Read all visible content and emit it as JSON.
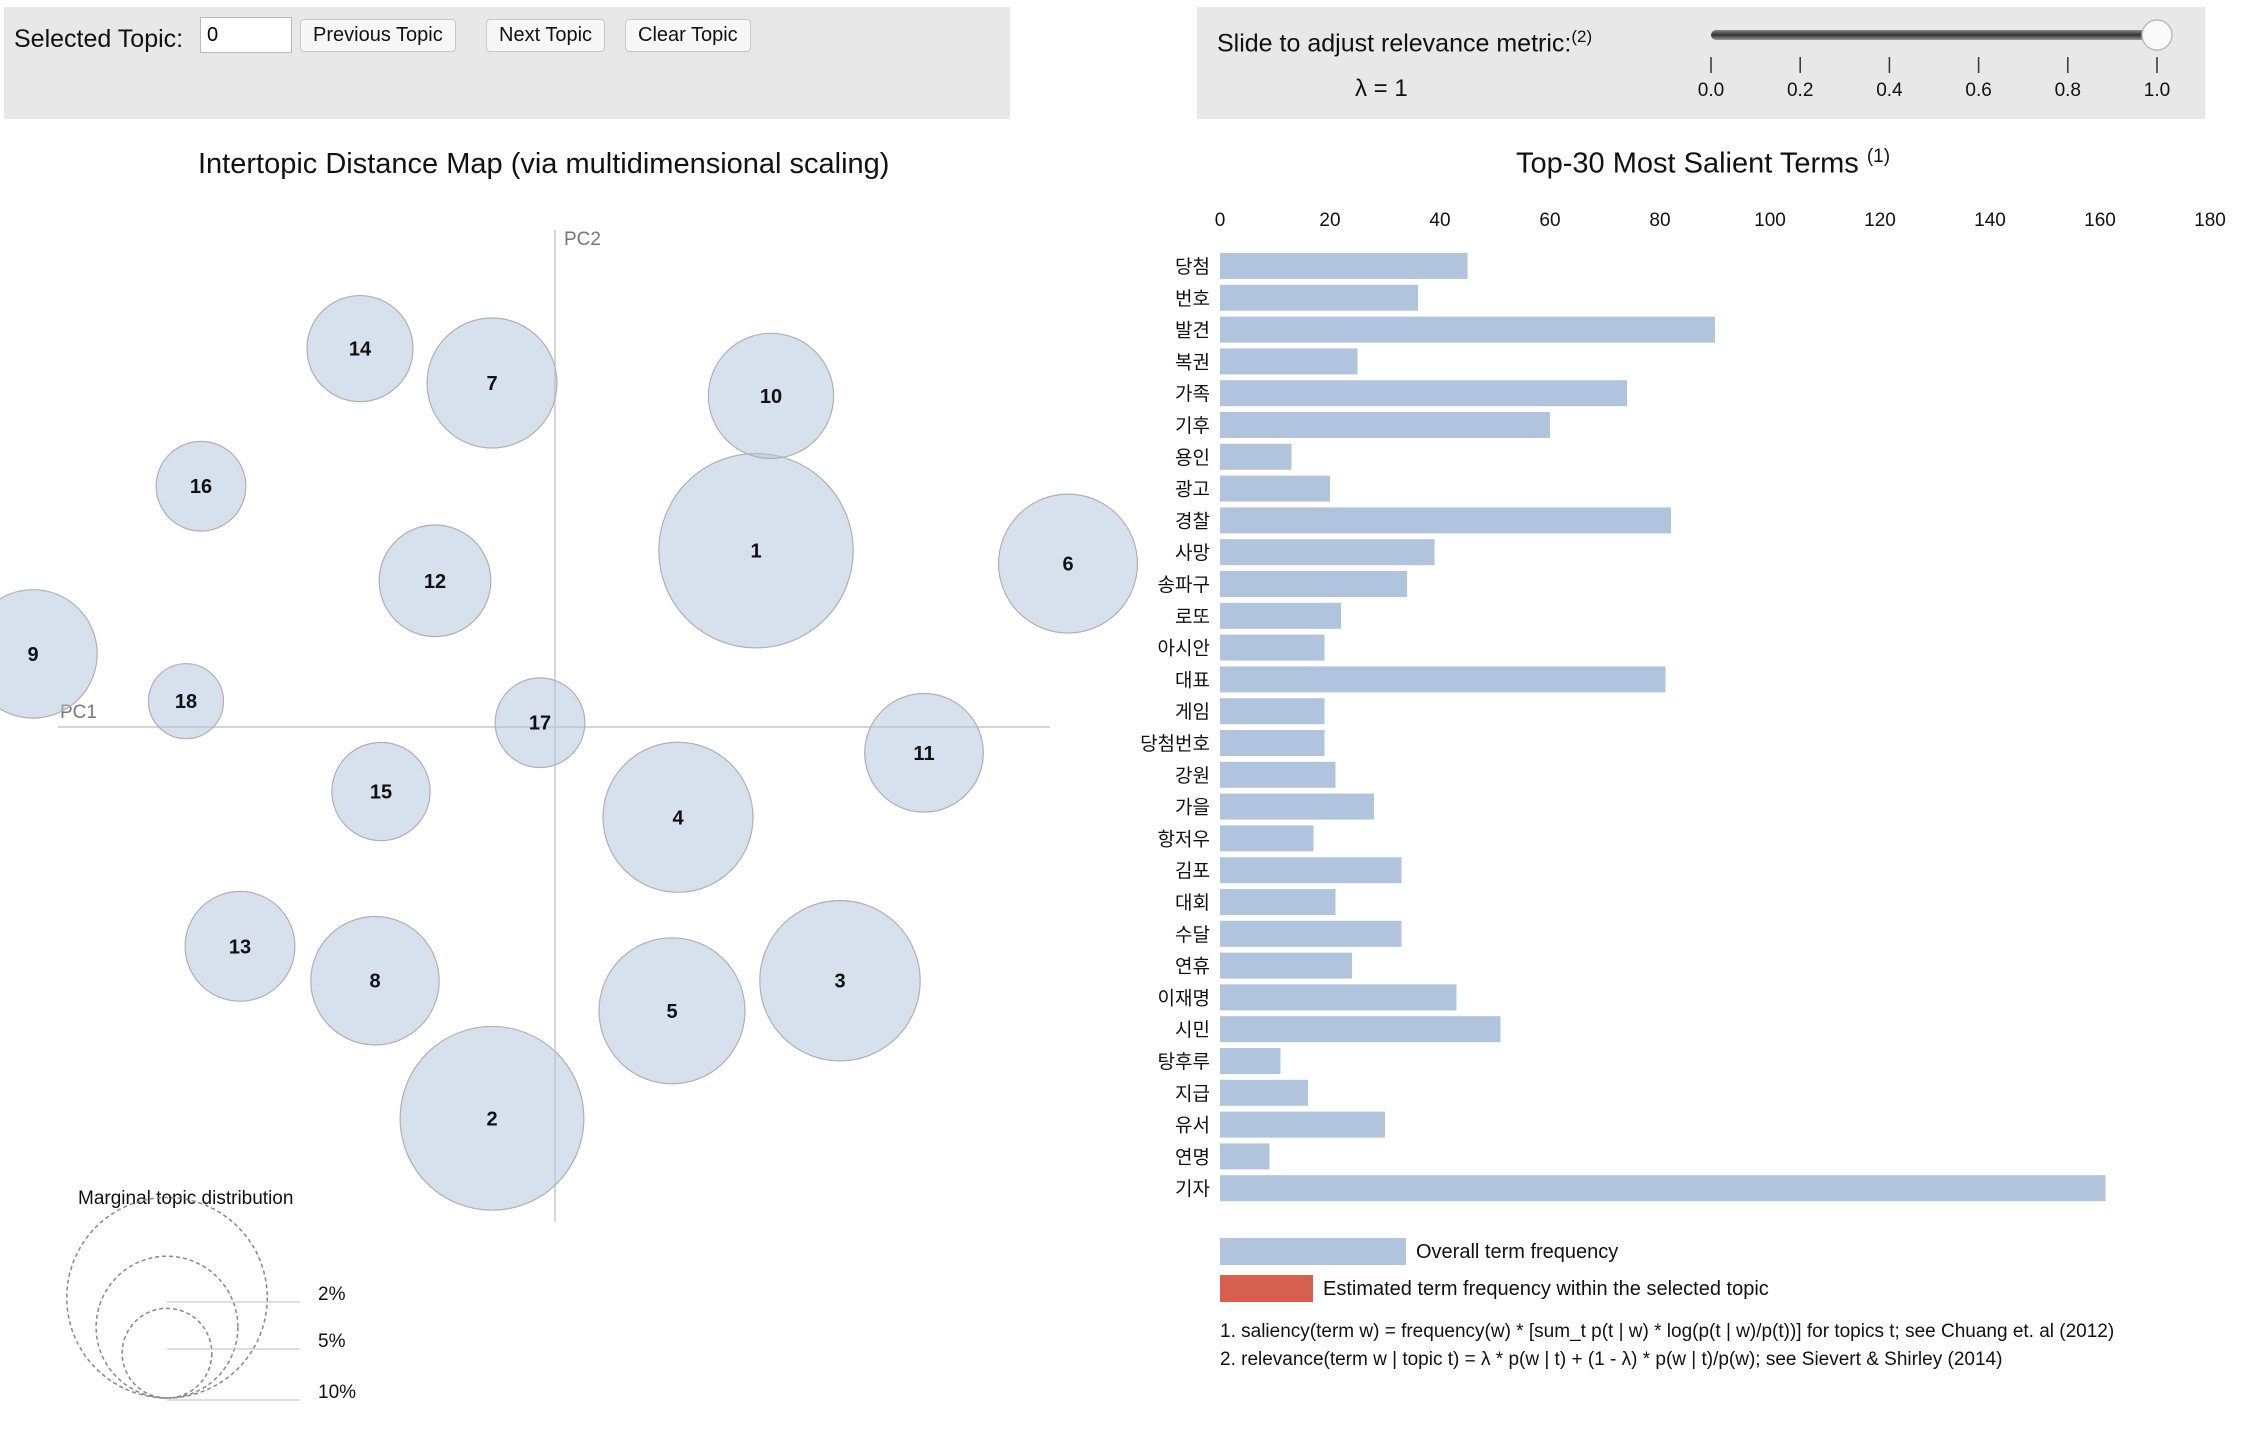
{
  "controls": {
    "selected_topic_label": "Selected Topic:",
    "selected_topic_value": "0",
    "prev_label": "Previous Topic",
    "next_label": "Next Topic",
    "clear_label": "Clear Topic",
    "slider_label": "Slide to adjust relevance metric:",
    "slider_note": "(2)",
    "lambda_text": "λ = 1",
    "lambda_value": 1,
    "slider_ticks": [
      "0.0",
      "0.2",
      "0.4",
      "0.6",
      "0.8",
      "1.0"
    ]
  },
  "chart_data": [
    {
      "type": "scatter",
      "title": "Intertopic Distance Map (via multidimensional scaling)",
      "xlabel": "PC1",
      "ylabel": "PC2",
      "topics": [
        {
          "id": "1",
          "x": 0.67,
          "y": 0.41,
          "size": 9.4
        },
        {
          "id": "2",
          "x": -0.21,
          "y": -0.91,
          "size": 8.4
        },
        {
          "id": "3",
          "x": 0.95,
          "y": -0.59,
          "size": 6.4
        },
        {
          "id": "4",
          "x": 0.41,
          "y": -0.21,
          "size": 5.6
        },
        {
          "id": "5",
          "x": 0.39,
          "y": -0.66,
          "size": 5.3
        },
        {
          "id": "6",
          "x": 1.71,
          "y": 0.38,
          "size": 4.8
        },
        {
          "id": "7",
          "x": -0.21,
          "y": 0.8,
          "size": 4.2
        },
        {
          "id": "8",
          "x": -0.6,
          "y": -0.59,
          "size": 4.1
        },
        {
          "id": "9",
          "x": -1.74,
          "y": 0.17,
          "size": 4.1
        },
        {
          "id": "10",
          "x": 0.72,
          "y": 0.77,
          "size": 3.9
        },
        {
          "id": "11",
          "x": 1.23,
          "y": -0.06,
          "size": 3.5
        },
        {
          "id": "12",
          "x": -0.4,
          "y": 0.34,
          "size": 3.1
        },
        {
          "id": "13",
          "x": -1.05,
          "y": -0.51,
          "size": 3.0
        },
        {
          "id": "14",
          "x": -0.65,
          "y": 0.88,
          "size": 2.8
        },
        {
          "id": "15",
          "x": -0.58,
          "y": -0.15,
          "size": 2.4
        },
        {
          "id": "16",
          "x": -1.18,
          "y": 0.56,
          "size": 2.0
        },
        {
          "id": "17",
          "x": -0.05,
          "y": 0.01,
          "size": 2.0
        },
        {
          "id": "18",
          "x": -1.23,
          "y": 0.06,
          "size": 1.4
        }
      ],
      "legend": {
        "title": "Marginal topic distribution",
        "items": [
          {
            "label": "2%",
            "value": 2
          },
          {
            "label": "5%",
            "value": 5
          },
          {
            "label": "10%",
            "value": 10
          }
        ]
      }
    },
    {
      "type": "bar",
      "orientation": "horizontal",
      "title": "Top-30 Most Salient Terms",
      "title_note": "(1)",
      "xlim": [
        0,
        180
      ],
      "ticks": [
        0,
        20,
        40,
        60,
        80,
        100,
        120,
        140,
        160,
        180
      ],
      "categories": [
        "당첨",
        "번호",
        "발견",
        "복권",
        "가족",
        "기후",
        "용인",
        "광고",
        "경찰",
        "사망",
        "송파구",
        "로또",
        "아시안",
        "대표",
        "게임",
        "당첨번호",
        "강원",
        "가을",
        "항저우",
        "김포",
        "대회",
        "수달",
        "연휴",
        "이재명",
        "시민",
        "탕후루",
        "지급",
        "유서",
        "연명",
        "기자"
      ],
      "series": [
        {
          "name": "Overall term frequency",
          "color": "#b0c4de",
          "values": [
            45,
            36,
            90,
            25,
            74,
            60,
            13,
            20,
            82,
            39,
            34,
            22,
            19,
            81,
            19,
            19,
            21,
            28,
            17,
            33,
            21,
            33,
            24,
            43,
            51,
            11,
            16,
            30,
            9,
            161
          ]
        }
      ],
      "legend": [
        {
          "label": "Overall term frequency",
          "color": "#b0c4de"
        },
        {
          "label": "Estimated term frequency within the selected topic",
          "color": "#d6604d"
        }
      ],
      "footnotes": [
        "1. saliency(term w) = frequency(w) * [sum_t p(t | w) * log(p(t | w)/p(t))] for topics t; see Chuang et. al (2012)",
        "2. relevance(term w | topic t) = λ * p(w | t) + (1 - λ) * p(w | t)/p(w); see Sievert & Shirley (2014)"
      ]
    }
  ]
}
